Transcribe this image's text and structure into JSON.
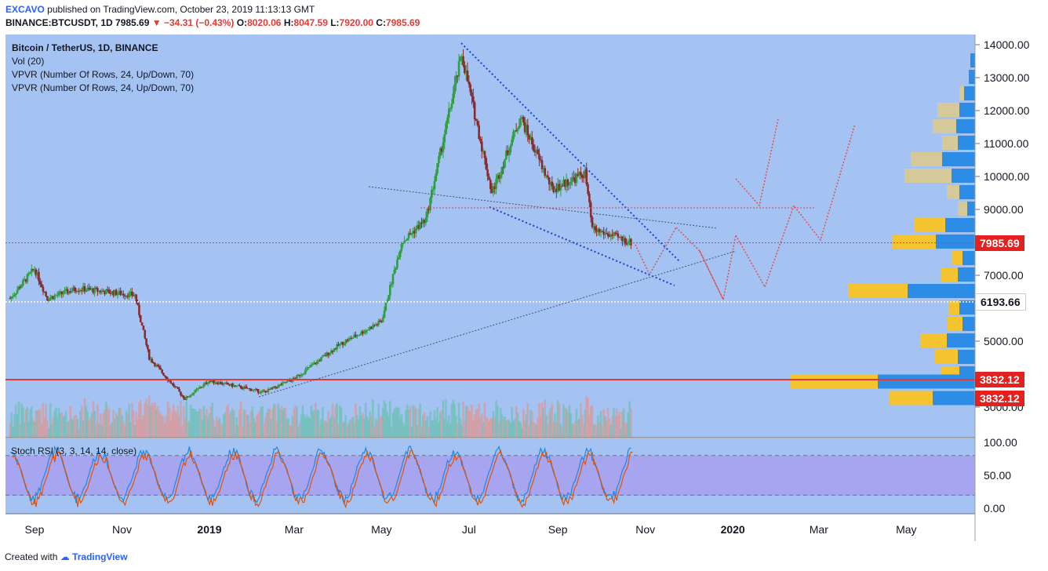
{
  "header": {
    "publisher": "EXCAVO",
    "published_text": "published on TradingView.com, October 23, 2019 11:13:13 GMT",
    "symbol": "BINANCE:BTCUSDT, 1D",
    "last": "7985.69",
    "change": "−34.31 (−0.43%)",
    "open_label": "O:",
    "open": "8020.06",
    "high_label": "H:",
    "high": "8047.59",
    "low_label": "L:",
    "low": "7920.00",
    "close_label": "C:",
    "close": "7985.69"
  },
  "legend": {
    "title": "Bitcoin / TetherUS, 1D, BINANCE",
    "vol": "Vol (20)",
    "vpvr1": "VPVR (Number Of Rows, 24, Up/Down, 70)",
    "vpvr2": "VPVR (Number Of Rows, 24, Up/Down, 70)"
  },
  "rsi_label": "Stoch RSI (3, 3, 14, 14, close)",
  "footer": {
    "created_with": "Created with",
    "brand": "TradingView"
  },
  "price_tags": {
    "current": "7985.69",
    "support": "6193.66",
    "level1": "3832.12",
    "level2": "3832.12"
  },
  "colors": {
    "background": "#a4c3f3",
    "rsi_band": "#a8a5f0",
    "up": "#2e9e3e",
    "down": "#8b2a2a",
    "red_line": "#e53935",
    "vp_up": "#2d8de6",
    "vp_down": "#f4c430",
    "vp_neutral": "#d5c99a"
  },
  "chart_data": {
    "type": "candlestick",
    "title": "Bitcoin / TetherUS, 1D, BINANCE",
    "y_axis_ticks": [
      "14000.00",
      "13000.00",
      "12000.00",
      "11000.00",
      "10000.00",
      "9000.00",
      "7000.00",
      "5000.00",
      "3000.00"
    ],
    "rsi_axis_ticks": [
      "100.00",
      "50.00",
      "0.00"
    ],
    "x_axis_ticks": [
      "Sep",
      "Nov",
      "2019",
      "Mar",
      "May",
      "Jul",
      "Sep",
      "Nov",
      "2020",
      "Mar",
      "May"
    ],
    "ylim": [
      2500,
      14300
    ],
    "price_path": [
      {
        "x": "2018-08-15",
        "y": 6300
      },
      {
        "x": "2018-09-01",
        "y": 7200
      },
      {
        "x": "2018-09-10",
        "y": 6300
      },
      {
        "x": "2018-10-01",
        "y": 6600
      },
      {
        "x": "2018-11-10",
        "y": 6400
      },
      {
        "x": "2018-11-20",
        "y": 4500
      },
      {
        "x": "2018-12-15",
        "y": 3250
      },
      {
        "x": "2019-01-01",
        "y": 3800
      },
      {
        "x": "2019-02-08",
        "y": 3450
      },
      {
        "x": "2019-03-01",
        "y": 3850
      },
      {
        "x": "2019-04-02",
        "y": 4900
      },
      {
        "x": "2019-05-01",
        "y": 5600
      },
      {
        "x": "2019-05-15",
        "y": 8000
      },
      {
        "x": "2019-06-01",
        "y": 8700
      },
      {
        "x": "2019-06-26",
        "y": 13700
      },
      {
        "x": "2019-07-17",
        "y": 9500
      },
      {
        "x": "2019-08-06",
        "y": 11800
      },
      {
        "x": "2019-08-28",
        "y": 9600
      },
      {
        "x": "2019-09-20",
        "y": 10100
      },
      {
        "x": "2019-09-25",
        "y": 8400
      },
      {
        "x": "2019-10-23",
        "y": 7985.69
      }
    ],
    "levels": {
      "current": 7985.69,
      "support": 6193.66,
      "major": 3832.12
    },
    "stoch_rsi_bands": [
      20,
      80
    ]
  }
}
